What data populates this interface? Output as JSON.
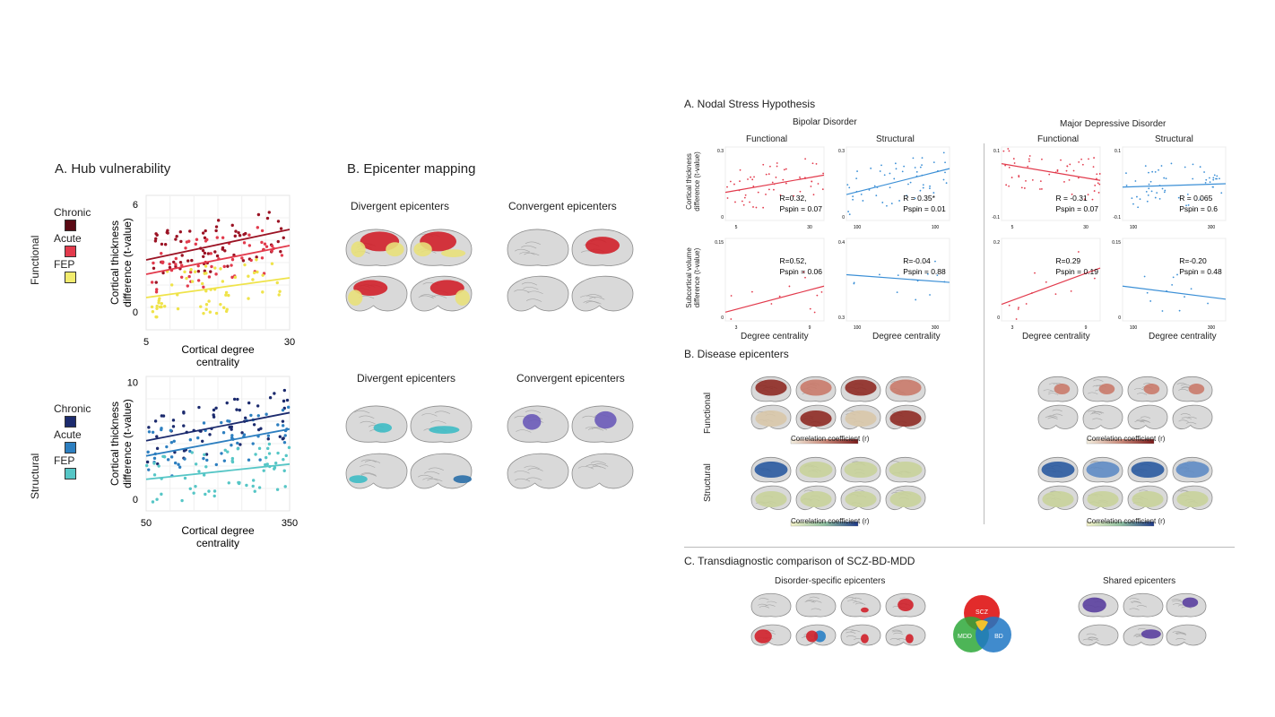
{
  "left": {
    "hub_title": "A. Hub vulnerability",
    "epi_title": "B. Epicenter mapping",
    "functional_label": "Functional",
    "structural_label": "Structural",
    "legend_functional": [
      {
        "label": "Chronic",
        "color": "#5a0a14"
      },
      {
        "label": "Acute",
        "color": "#e23a4c"
      },
      {
        "label": "FEP",
        "color": "#f2ec6e"
      }
    ],
    "legend_structural": [
      {
        "label": "Chronic",
        "color": "#1c2b6e"
      },
      {
        "label": "Acute",
        "color": "#2d7fc0"
      },
      {
        "label": "FEP",
        "color": "#56c6c6"
      }
    ],
    "div_epi_1": "Divergent epicenters",
    "conv_epi_1": "Convergent epicenters",
    "div_epi_2": "Divergent epicenters",
    "conv_epi_2": "Convergent epicenters"
  },
  "right": {
    "nodal_title": "A. Nodal Stress Hypothesis",
    "bd_title": "Bipolar Disorder",
    "mdd_title": "Major Depressive Disorder",
    "functional": "Functional",
    "structural": "Structural",
    "ylabel_top": "Cortical thickness difference (t-value)",
    "ylabel_bottom": "Subcortical volume difference (t-value)",
    "xlabel": "Degree centrality",
    "disease_title": "B. Disease epicenters",
    "row_functional": "Functional",
    "row_structural": "Structural",
    "cbar_label": "Correlation coefficient (r)",
    "trans_title": "C. Transdiagnostic comparison of SCZ-BD-MDD",
    "disorder_specific": "Disorder-specific epicenters",
    "shared": "Shared epicenters",
    "venn": {
      "scz": "SCZ",
      "mdd": "MDD",
      "bd": "BD"
    }
  },
  "chart_data": [
    {
      "type": "scatter",
      "title": "",
      "xlabel": "Cortical degree centrality",
      "ylabel": "Cortical thickness difference (t-value)",
      "xlim": [
        5,
        30
      ],
      "ylim": [
        -1,
        6.5
      ],
      "x_ticks": [
        "5",
        "30"
      ],
      "y_ticks": [
        "0",
        "6"
      ],
      "series": [
        {
          "name": "Chronic",
          "color": "#9b1324",
          "fit": [
            [
              5,
              2.9
            ],
            [
              30,
              4.6
            ]
          ],
          "n": 70
        },
        {
          "name": "Acute",
          "color": "#e23a4c",
          "fit": [
            [
              5,
              2.1
            ],
            [
              30,
              3.7
            ]
          ],
          "n": 60
        },
        {
          "name": "FEP",
          "color": "#efe34a",
          "fit": [
            [
              5,
              0.8
            ],
            [
              30,
              1.9
            ]
          ],
          "n": 60
        }
      ]
    },
    {
      "type": "scatter",
      "title": "",
      "xlabel": "Cortical degree centrality",
      "ylabel": "Cortical thickness difference (t-value)",
      "xlim": [
        30,
        370
      ],
      "ylim": [
        -1,
        10.5
      ],
      "x_ticks": [
        "50",
        "350"
      ],
      "y_ticks": [
        "0",
        "10"
      ],
      "series": [
        {
          "name": "Chronic",
          "color": "#1c2b6e",
          "fit": [
            [
              30,
              5.0
            ],
            [
              370,
              7.4
            ]
          ],
          "n": 60
        },
        {
          "name": "Acute",
          "color": "#2d7fc0",
          "fit": [
            [
              30,
              3.7
            ],
            [
              370,
              6.0
            ]
          ],
          "n": 60
        },
        {
          "name": "FEP",
          "color": "#56c6c6",
          "fit": [
            [
              30,
              1.7
            ],
            [
              370,
              3.0
            ]
          ],
          "n": 60
        }
      ]
    },
    {
      "type": "scatter",
      "title": "Functional",
      "group": "Bipolar Disorder",
      "xlabel": "",
      "ylabel": "Cortical thickness difference (t-value)",
      "xlim": [
        5,
        30
      ],
      "ylim": [
        -0.02,
        0.32
      ],
      "x_ticks": [
        "5",
        "30"
      ],
      "y_ticks": [
        "0",
        "0.3"
      ],
      "color": "#e23a4c",
      "fit": [
        [
          5,
          0.11
        ],
        [
          30,
          0.19
        ]
      ],
      "annotation": [
        "R=0.32,",
        "Pspin = 0.07"
      ]
    },
    {
      "type": "scatter",
      "title": "Structural",
      "group": "Bipolar Disorder",
      "xlabel": "",
      "ylabel": "",
      "xlim": [
        40,
        110
      ],
      "ylim": [
        -0.02,
        0.32
      ],
      "x_ticks": [
        "100",
        "100"
      ],
      "y_ticks": [
        "0",
        "0.3"
      ],
      "color": "#3b8fd6",
      "fit": [
        [
          40,
          0.1
        ],
        [
          110,
          0.22
        ]
      ],
      "annotation": [
        "R = 0.35*",
        "Pspin = 0.01"
      ]
    },
    {
      "type": "scatter",
      "title": "Functional",
      "group": "Major Depressive Disorder",
      "xlabel": "",
      "ylabel": "",
      "xlim": [
        5,
        30
      ],
      "ylim": [
        -0.1,
        0.12
      ],
      "x_ticks": [
        "5",
        "30"
      ],
      "y_ticks": [
        "-0.1",
        "0.1"
      ],
      "color": "#e23a4c",
      "fit": [
        [
          5,
          0.07
        ],
        [
          30,
          0.02
        ]
      ],
      "annotation": [
        "R = -0.31",
        "Pspin = 0.07"
      ]
    },
    {
      "type": "scatter",
      "title": "Structural",
      "group": "Major Depressive Disorder",
      "xlabel": "",
      "ylabel": "",
      "xlim": [
        90,
        330
      ],
      "ylim": [
        -0.1,
        0.12
      ],
      "x_ticks": [
        "100",
        "300"
      ],
      "y_ticks": [
        "-0.1",
        "0.1"
      ],
      "color": "#3b8fd6",
      "fit": [
        [
          90,
          0.0
        ],
        [
          330,
          0.01
        ]
      ],
      "annotation": [
        "R = 0.065",
        "Pspin = 0.6"
      ]
    },
    {
      "type": "scatter",
      "title": "",
      "group": "Bipolar Disorder",
      "xlabel": "Degree centrality",
      "ylabel": "Subcortical volume difference (t-value)",
      "xlim": [
        2,
        10
      ],
      "ylim": [
        -0.02,
        0.17
      ],
      "x_ticks": [
        "3",
        "9"
      ],
      "y_ticks": [
        "0",
        "0.15"
      ],
      "color": "#e23a4c",
      "fit": [
        [
          2,
          0.0
        ],
        [
          10,
          0.06
        ]
      ],
      "annotation": [
        "R=0.52,",
        "Pspin = 0.06"
      ]
    },
    {
      "type": "scatter",
      "title": "",
      "group": "Bipolar Disorder",
      "xlabel": "Degree centrality",
      "ylabel": "",
      "xlim": [
        100,
        330
      ],
      "ylim": [
        -0.3,
        0.45
      ],
      "x_ticks": [
        "100",
        "300"
      ],
      "y_ticks": [
        "0.3",
        "0.4"
      ],
      "color": "#3b8fd6",
      "fit": [
        [
          100,
          0.12
        ],
        [
          330,
          0.05
        ]
      ],
      "annotation": [
        "R=-0.04",
        "Pspin = 0.88"
      ]
    },
    {
      "type": "scatter",
      "title": "",
      "group": "Major Depressive Disorder",
      "xlabel": "Degree centrality",
      "ylabel": "",
      "xlim": [
        2,
        10
      ],
      "ylim": [
        -0.02,
        0.23
      ],
      "x_ticks": [
        "3",
        "9"
      ],
      "y_ticks": [
        "0",
        "0.2"
      ],
      "color": "#e23a4c",
      "fit": [
        [
          2,
          0.03
        ],
        [
          10,
          0.14
        ]
      ],
      "annotation": [
        "R=0.29",
        "Pspin = 0.19"
      ]
    },
    {
      "type": "scatter",
      "title": "",
      "group": "Major Depressive Disorder",
      "xlabel": "Degree centrality",
      "ylabel": "",
      "xlim": [
        90,
        330
      ],
      "ylim": [
        -0.02,
        0.17
      ],
      "x_ticks": [
        "100",
        "300"
      ],
      "y_ticks": [
        "0",
        "0.15"
      ],
      "color": "#3b8fd6",
      "fit": [
        [
          90,
          0.06
        ],
        [
          330,
          0.03
        ]
      ],
      "annotation": [
        "R=-0.20",
        "Pspin = 0.48"
      ]
    }
  ]
}
